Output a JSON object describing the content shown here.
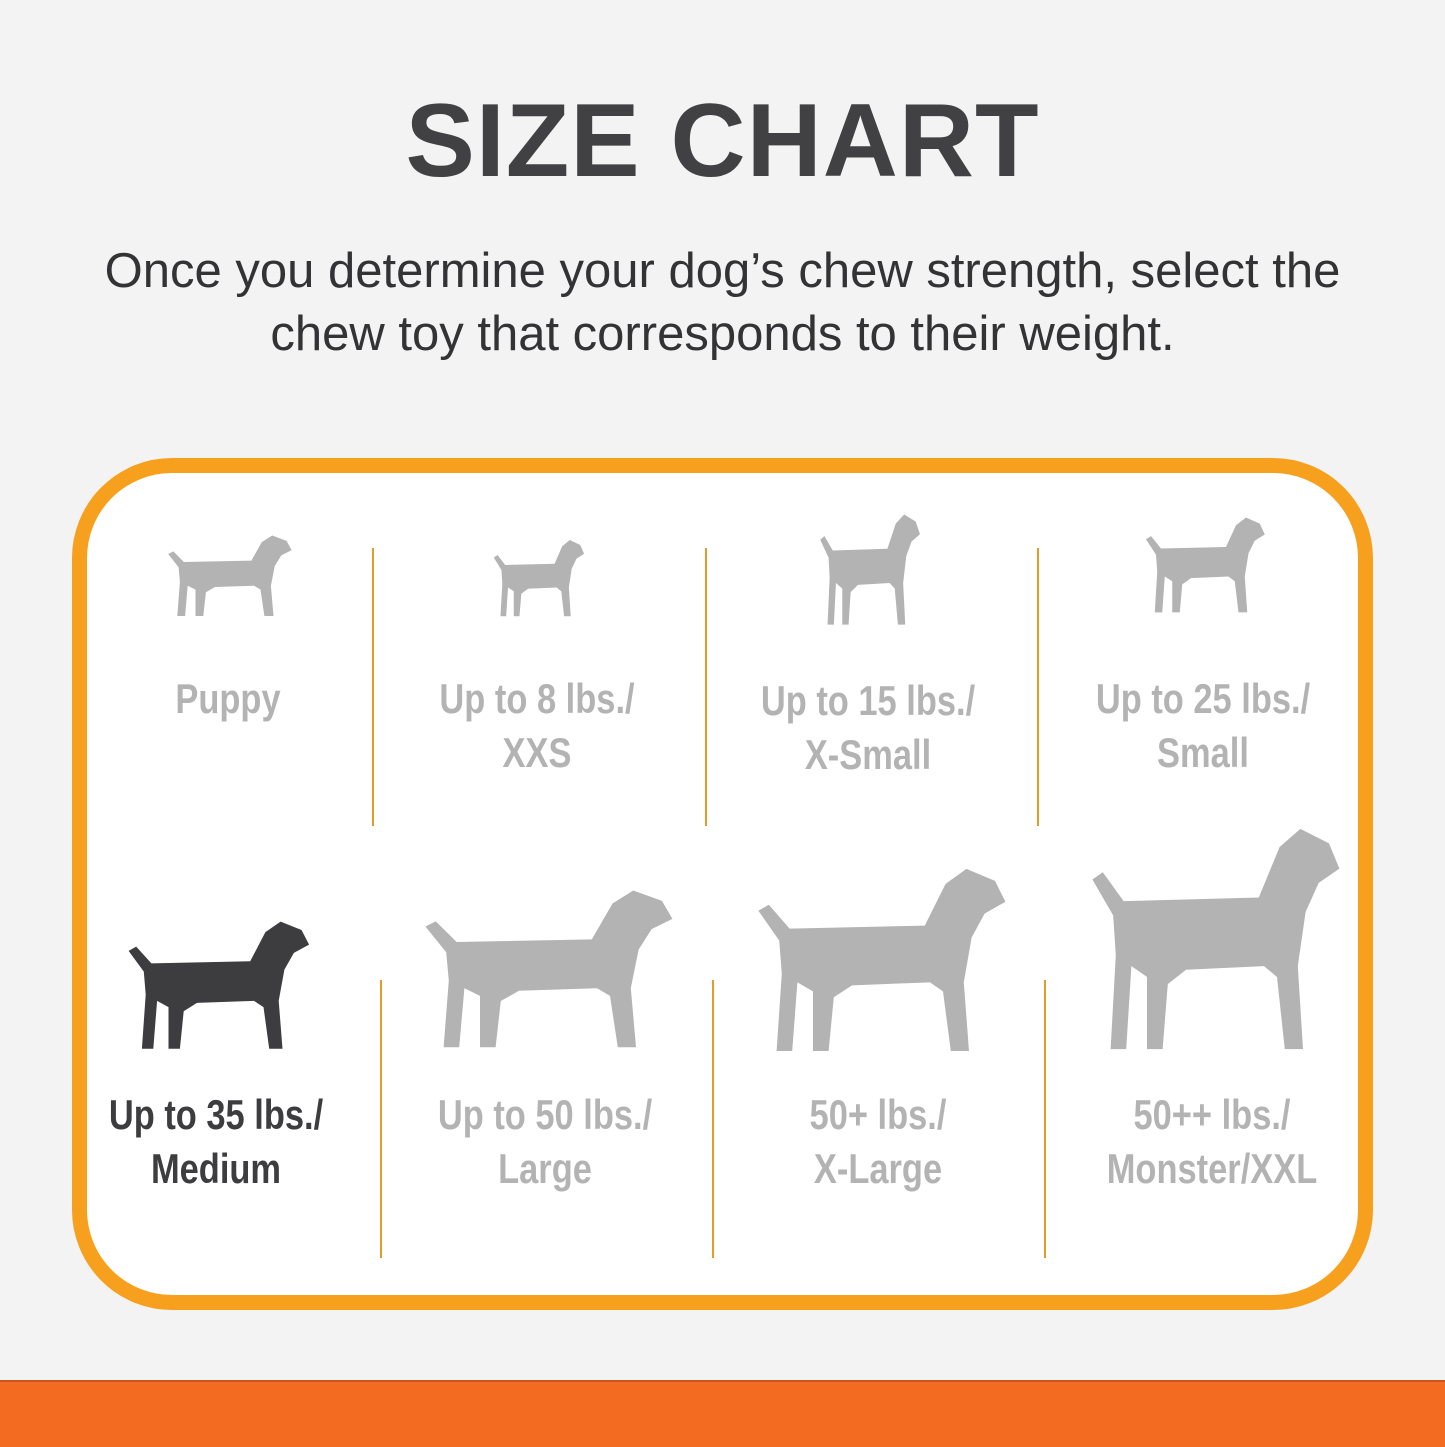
{
  "title": "SIZE CHART",
  "subtitle": {
    "line1": "Once you determine your dog’s chew strength, select the",
    "line2": "chew toy that corresponds to their weight."
  },
  "colors": {
    "border": "#f7a01e",
    "band": "#f26b21",
    "inactive": "#b3b3b3",
    "active": "#3d3d40"
  },
  "sizes": [
    {
      "line1": "Puppy",
      "line2": "",
      "icon": "puppy-icon",
      "active": false
    },
    {
      "line1": "Up to 8 lbs./",
      "line2": "XXS",
      "icon": "chihuahua-icon",
      "active": false
    },
    {
      "line1": "Up to 15 lbs./",
      "line2": "X-Small",
      "icon": "small-terrier-icon",
      "active": false
    },
    {
      "line1": "Up to 25 lbs./",
      "line2": "Small",
      "icon": "scottie-icon",
      "active": false
    },
    {
      "line1": "Up to 35 lbs./",
      "line2": "Medium",
      "icon": "beagle-icon",
      "active": true
    },
    {
      "line1": "Up to 50 lbs./",
      "line2": "Large",
      "icon": "labrador-icon",
      "active": false
    },
    {
      "line1": "50+ lbs./",
      "line2": "X-Large",
      "icon": "shepherd-icon",
      "active": false
    },
    {
      "line1": "50++ lbs./",
      "line2": "Monster/XXL",
      "icon": "great-dane-icon",
      "active": false
    }
  ]
}
